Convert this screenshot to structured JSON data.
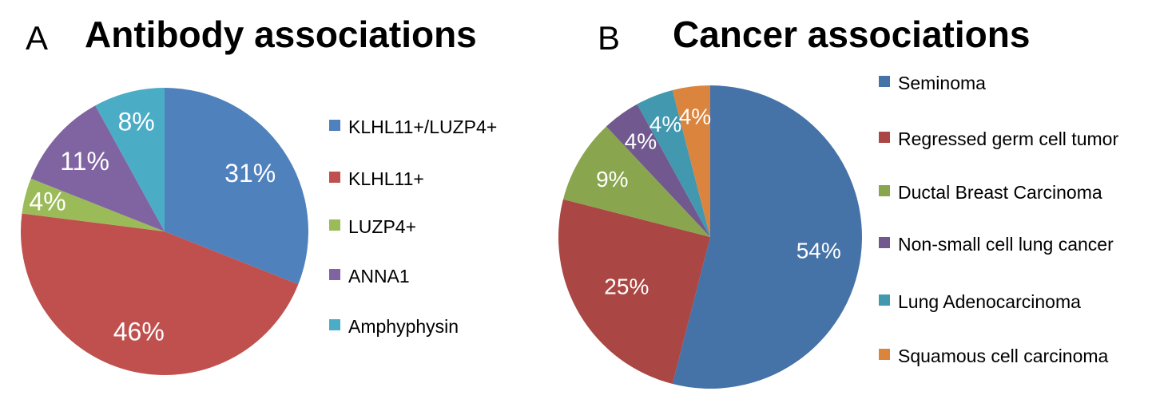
{
  "panels": [
    {
      "letter": "A",
      "title": "Antibody associations",
      "chart_data": {
        "type": "pie",
        "title": "Antibody associations",
        "start_angle_deg": 0,
        "direction": "clockwise",
        "slices": [
          {
            "label": "KLHL11+/LUZP4+",
            "value": 31,
            "display": "31%",
            "color": "#4f81bd"
          },
          {
            "label": "KLHL11+",
            "value": 46,
            "display": "46%",
            "color": "#c0504d"
          },
          {
            "label": "LUZP4+",
            "value": 4,
            "display": "4%",
            "color": "#9bbb59"
          },
          {
            "label": "ANNA1",
            "value": 11,
            "display": "11%",
            "color": "#8064a2"
          },
          {
            "label": "Amphyphysin",
            "value": 8,
            "display": "8%",
            "color": "#4bacc6"
          }
        ],
        "legend_placement": "right"
      }
    },
    {
      "letter": "B",
      "title": "Cancer associations",
      "chart_data": {
        "type": "pie",
        "title": "Cancer associations",
        "start_angle_deg": 0,
        "direction": "clockwise",
        "slices": [
          {
            "label": "Seminoma",
            "value": 54,
            "display": "54%",
            "color": "#4572a7"
          },
          {
            "label": "Regressed germ cell tumor",
            "value": 25,
            "display": "25%",
            "color": "#aa4643"
          },
          {
            "label": "Ductal Breast Carcinoma",
            "value": 9,
            "display": "9%",
            "color": "#89a54e"
          },
          {
            "label": "Non-small cell lung cancer",
            "value": 4,
            "display": "4%",
            "color": "#71588f"
          },
          {
            "label": "Lung Adenocarcinoma",
            "value": 4,
            "display": "4%",
            "color": "#4198af"
          },
          {
            "label": "Squamous cell carcinoma",
            "value": 4,
            "display": "4%",
            "color": "#db843d"
          }
        ],
        "legend_placement": "right"
      }
    }
  ]
}
